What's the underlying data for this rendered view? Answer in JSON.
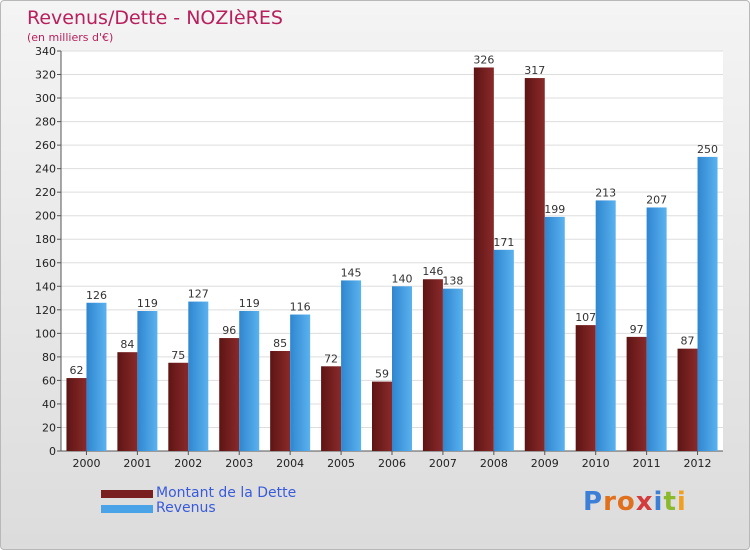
{
  "header": {
    "title": "Revenus/Dette - NOZIèRES",
    "subtitle": "(en milliers d'€)"
  },
  "chart_data": {
    "type": "bar",
    "categories": [
      "2000",
      "2001",
      "2002",
      "2003",
      "2004",
      "2005",
      "2006",
      "2007",
      "2008",
      "2009",
      "2010",
      "2011",
      "2012"
    ],
    "series": [
      {
        "name": "Montant de la Dette",
        "color": "#7a1f1f",
        "values": [
          62,
          84,
          75,
          96,
          85,
          72,
          59,
          146,
          326,
          317,
          107,
          97,
          87
        ]
      },
      {
        "name": "Revenus",
        "color": "#4aa3e6",
        "values": [
          126,
          119,
          127,
          119,
          116,
          145,
          140,
          138,
          171,
          199,
          213,
          207,
          250
        ]
      }
    ],
    "y_ticks": [
      0,
      20,
      40,
      60,
      80,
      100,
      120,
      140,
      160,
      180,
      200,
      220,
      240,
      260,
      280,
      300,
      320,
      340
    ],
    "ylim": [
      0,
      340
    ],
    "grid": true,
    "legend": "bottom-left"
  },
  "legend": {
    "items": [
      {
        "label": "Montant de la Dette",
        "color": "#7a1f1f"
      },
      {
        "label": "Revenus",
        "color": "#4aa3e6"
      }
    ]
  },
  "logo": {
    "letters": [
      "P",
      "r",
      "o",
      "x",
      "i",
      "t",
      "i"
    ],
    "colors": [
      "#3d7fd6",
      "#e0701c",
      "#e0701c",
      "#d63b3b",
      "#3d7fd6",
      "#8ab92d",
      "#f0a020"
    ]
  }
}
